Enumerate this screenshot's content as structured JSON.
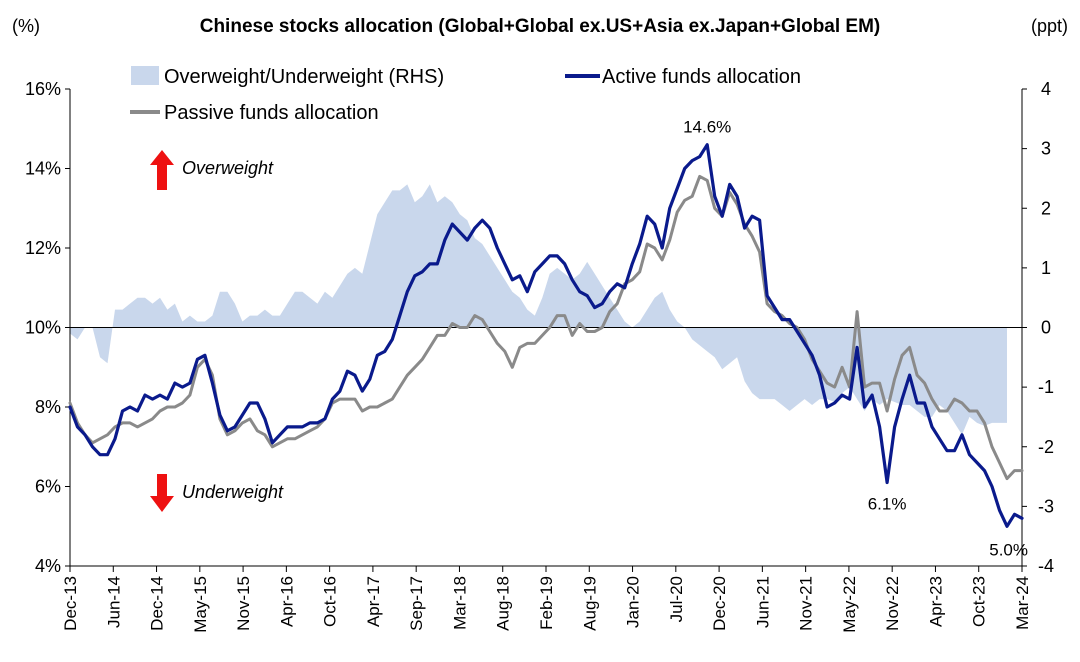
{
  "chart_data": {
    "type": "line",
    "title": "Chinese stocks allocation (Global+Global ex.US+Asia ex.Japan+Global EM)",
    "left_unit": "(%)",
    "right_unit": "(ppt)",
    "left_axis": {
      "min": 4,
      "max": 16,
      "ticks": [
        "4%",
        "6%",
        "8%",
        "10%",
        "12%",
        "14%",
        "16%"
      ]
    },
    "right_axis": {
      "min": -4,
      "max": 4,
      "ticks": [
        "-4",
        "-3",
        "-2",
        "-1",
        "0",
        "1",
        "2",
        "3",
        "4"
      ]
    },
    "x_labels": [
      "Dec-13",
      "Jun-14",
      "Dec-14",
      "May-15",
      "Nov-15",
      "Apr-16",
      "Oct-16",
      "Apr-17",
      "Sep-17",
      "Mar-18",
      "Aug-18",
      "Feb-19",
      "Aug-19",
      "Jan-20",
      "Jul-20",
      "Dec-20",
      "Jun-21",
      "Nov-21",
      "May-22",
      "Nov-22",
      "Apr-23",
      "Oct-23",
      "Mar-24"
    ],
    "legend_position": "top",
    "series": [
      {
        "name": "Overweight/Underweight (RHS)",
        "kind": "area",
        "axis": "right",
        "color": "#c9d7ec",
        "values": [
          -0.1,
          -0.2,
          0.0,
          0.0,
          -0.5,
          -0.6,
          0.3,
          0.3,
          0.4,
          0.5,
          0.5,
          0.4,
          0.5,
          0.3,
          0.4,
          0.1,
          0.2,
          0.1,
          0.1,
          0.2,
          0.6,
          0.6,
          0.4,
          0.1,
          0.2,
          0.2,
          0.3,
          0.2,
          0.2,
          0.4,
          0.6,
          0.6,
          0.5,
          0.4,
          0.6,
          0.5,
          0.7,
          0.9,
          1.0,
          0.9,
          1.4,
          1.9,
          2.1,
          2.3,
          2.3,
          2.4,
          2.1,
          2.2,
          2.4,
          2.1,
          2.2,
          2.1,
          1.9,
          1.8,
          1.5,
          1.4,
          1.2,
          1.0,
          0.8,
          0.6,
          0.5,
          0.3,
          0.2,
          0.5,
          0.9,
          1.0,
          0.9,
          0.8,
          0.9,
          1.1,
          0.9,
          0.7,
          0.5,
          0.3,
          0.1,
          0.0,
          0.1,
          0.3,
          0.5,
          0.6,
          0.3,
          0.1,
          0.0,
          -0.2,
          -0.3,
          -0.4,
          -0.5,
          -0.7,
          -0.6,
          -0.5,
          -0.9,
          -1.1,
          -1.2,
          -1.2,
          -1.2,
          -1.3,
          -1.4,
          -1.3,
          -1.2,
          -1.3,
          -1.2,
          -1.2,
          -1.25,
          -1.1,
          -1.0,
          -1.2,
          -1.4,
          -1.2,
          -1.3,
          -1.2,
          -1.25,
          -1.3,
          -1.3,
          -1.4,
          -1.5,
          -1.5,
          -1.3,
          -1.4,
          -1.6,
          -1.8,
          -1.5,
          -1.6,
          -1.65,
          -1.6,
          -1.6,
          -1.6
        ]
      },
      {
        "name": "Active funds allocation",
        "kind": "line",
        "axis": "left",
        "color": "#0a1a8c",
        "values": [
          8.0,
          7.5,
          7.3,
          7.0,
          6.8,
          6.8,
          7.2,
          7.9,
          8.0,
          7.9,
          8.3,
          8.2,
          8.3,
          8.2,
          8.6,
          8.5,
          8.6,
          9.2,
          9.3,
          8.6,
          7.8,
          7.4,
          7.5,
          7.8,
          8.1,
          8.1,
          7.7,
          7.1,
          7.3,
          7.5,
          7.5,
          7.5,
          7.6,
          7.6,
          7.7,
          8.2,
          8.4,
          8.9,
          8.8,
          8.4,
          8.7,
          9.3,
          9.4,
          9.7,
          10.3,
          10.9,
          11.3,
          11.4,
          11.6,
          11.6,
          12.2,
          12.6,
          12.4,
          12.2,
          12.5,
          12.7,
          12.5,
          12.0,
          11.6,
          11.2,
          11.3,
          10.9,
          11.4,
          11.6,
          11.8,
          11.8,
          11.6,
          11.2,
          10.9,
          10.8,
          10.5,
          10.6,
          10.9,
          11.1,
          11.0,
          11.6,
          12.1,
          12.8,
          12.6,
          12.0,
          13.0,
          13.5,
          14.0,
          14.2,
          14.3,
          14.6,
          13.3,
          12.8,
          13.6,
          13.3,
          12.5,
          12.8,
          12.7,
          10.8,
          10.5,
          10.2,
          10.2,
          9.9,
          9.6,
          9.3,
          8.8,
          8.0,
          8.1,
          8.3,
          8.2,
          9.5,
          8.0,
          8.3,
          7.5,
          6.1,
          7.5,
          8.2,
          8.8,
          8.1,
          8.1,
          7.5,
          7.2,
          6.9,
          6.9,
          7.3,
          6.8,
          6.6,
          6.4,
          6.0,
          5.4,
          5.0,
          5.3,
          5.2
        ]
      },
      {
        "name": "Passive funds allocation",
        "kind": "line",
        "axis": "left",
        "color": "#8a8a8a",
        "values": [
          8.1,
          7.6,
          7.3,
          7.1,
          7.2,
          7.3,
          7.5,
          7.6,
          7.6,
          7.5,
          7.6,
          7.7,
          7.9,
          8.0,
          8.0,
          8.1,
          8.3,
          9.0,
          9.2,
          8.8,
          7.7,
          7.3,
          7.4,
          7.6,
          7.7,
          7.4,
          7.3,
          7.0,
          7.1,
          7.2,
          7.2,
          7.3,
          7.4,
          7.5,
          7.7,
          8.1,
          8.2,
          8.2,
          8.2,
          7.9,
          8.0,
          8.0,
          8.1,
          8.2,
          8.5,
          8.8,
          9.0,
          9.2,
          9.5,
          9.8,
          9.8,
          10.1,
          10.0,
          10.0,
          10.3,
          10.2,
          9.9,
          9.6,
          9.4,
          9.0,
          9.5,
          9.6,
          9.6,
          9.8,
          10.0,
          10.3,
          10.3,
          9.8,
          10.1,
          9.9,
          9.9,
          10.0,
          10.4,
          10.6,
          11.1,
          11.2,
          11.4,
          12.1,
          12.0,
          11.7,
          12.2,
          12.9,
          13.2,
          13.3,
          13.8,
          13.7,
          13.0,
          12.8,
          13.4,
          13.1,
          12.6,
          12.3,
          11.9,
          10.6,
          10.4,
          10.3,
          10.1,
          10.0,
          9.7,
          9.2,
          8.9,
          8.6,
          8.5,
          9.0,
          8.5,
          10.4,
          8.5,
          8.6,
          8.6,
          7.9,
          8.7,
          9.3,
          9.5,
          8.8,
          8.6,
          8.2,
          7.9,
          7.9,
          8.2,
          8.1,
          7.9,
          7.9,
          7.6,
          7.0,
          6.6,
          6.2,
          6.4,
          6.4
        ]
      }
    ],
    "annotations": [
      {
        "text": "14.6%",
        "series": "Active funds allocation",
        "index": 85
      },
      {
        "text": "6.1%",
        "series": "Active funds allocation",
        "index": 109
      },
      {
        "text": "5.0%",
        "series": "Active funds allocation",
        "index": 125
      }
    ],
    "notes": {
      "overweight": "Overweight",
      "underweight": "Underweight"
    },
    "grid": false
  }
}
